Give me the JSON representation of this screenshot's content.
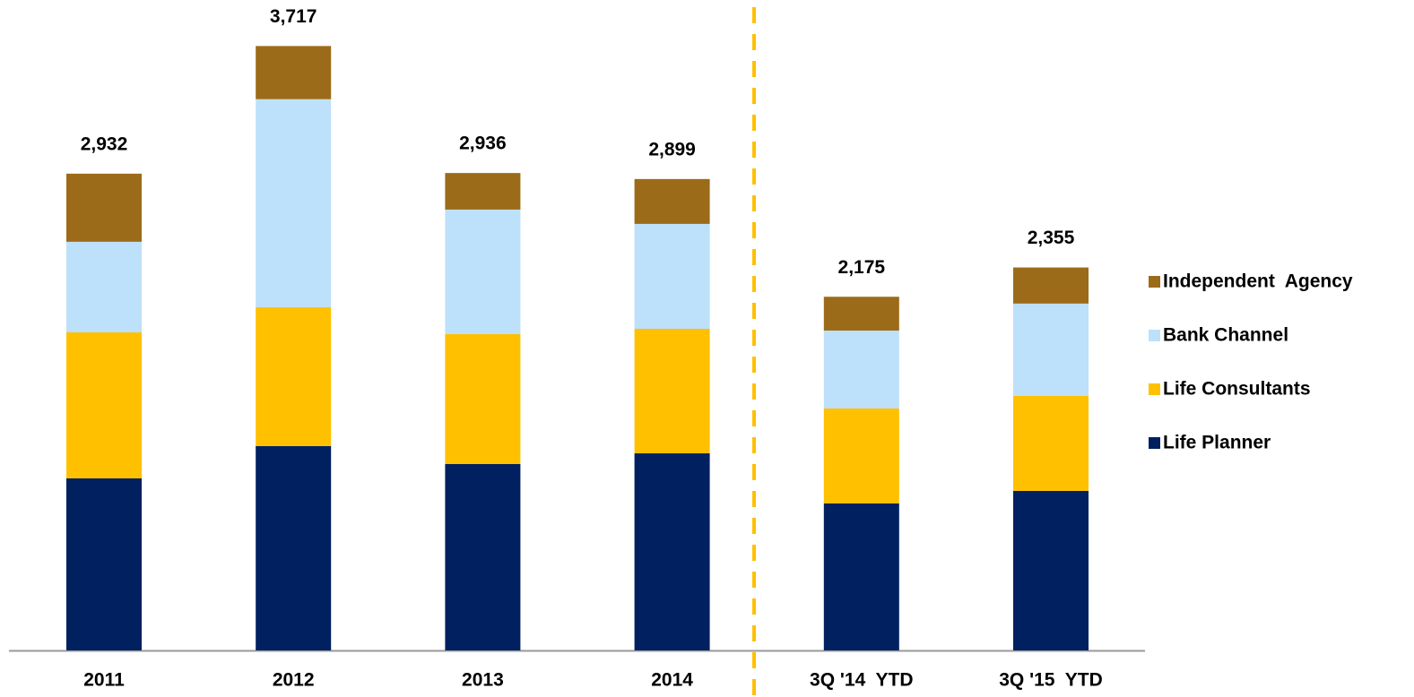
{
  "chart_data": {
    "type": "stacked_bar",
    "categories": [
      "2011",
      "2012",
      "2013",
      "2014",
      "3Q '14  YTD",
      "3Q '15  YTD"
    ],
    "series": [
      {
        "name": "Life Planner",
        "color": "#002060",
        "values": [
          1058,
          1257,
          1146,
          1212,
          904,
          981
        ]
      },
      {
        "name": "Life Consultants",
        "color": "#ffc000",
        "values": [
          898,
          854,
          799,
          766,
          584,
          584
        ]
      },
      {
        "name": "Bank Channel",
        "color": "#bde0fb",
        "values": [
          557,
          1279,
          766,
          645,
          479,
          568
        ]
      },
      {
        "name": "Independent  Agency",
        "color": "#9c6b19",
        "values": [
          419,
          327,
          225,
          276,
          208,
          222
        ]
      }
    ],
    "totals": [
      2932,
      3717,
      2936,
      2899,
      2175,
      2355
    ],
    "total_labels": [
      "2,932",
      "3,717",
      "2,936",
      "2,899",
      "2,175",
      "2,355"
    ],
    "ylim": [
      0,
      4000
    ],
    "legend": "right"
  }
}
